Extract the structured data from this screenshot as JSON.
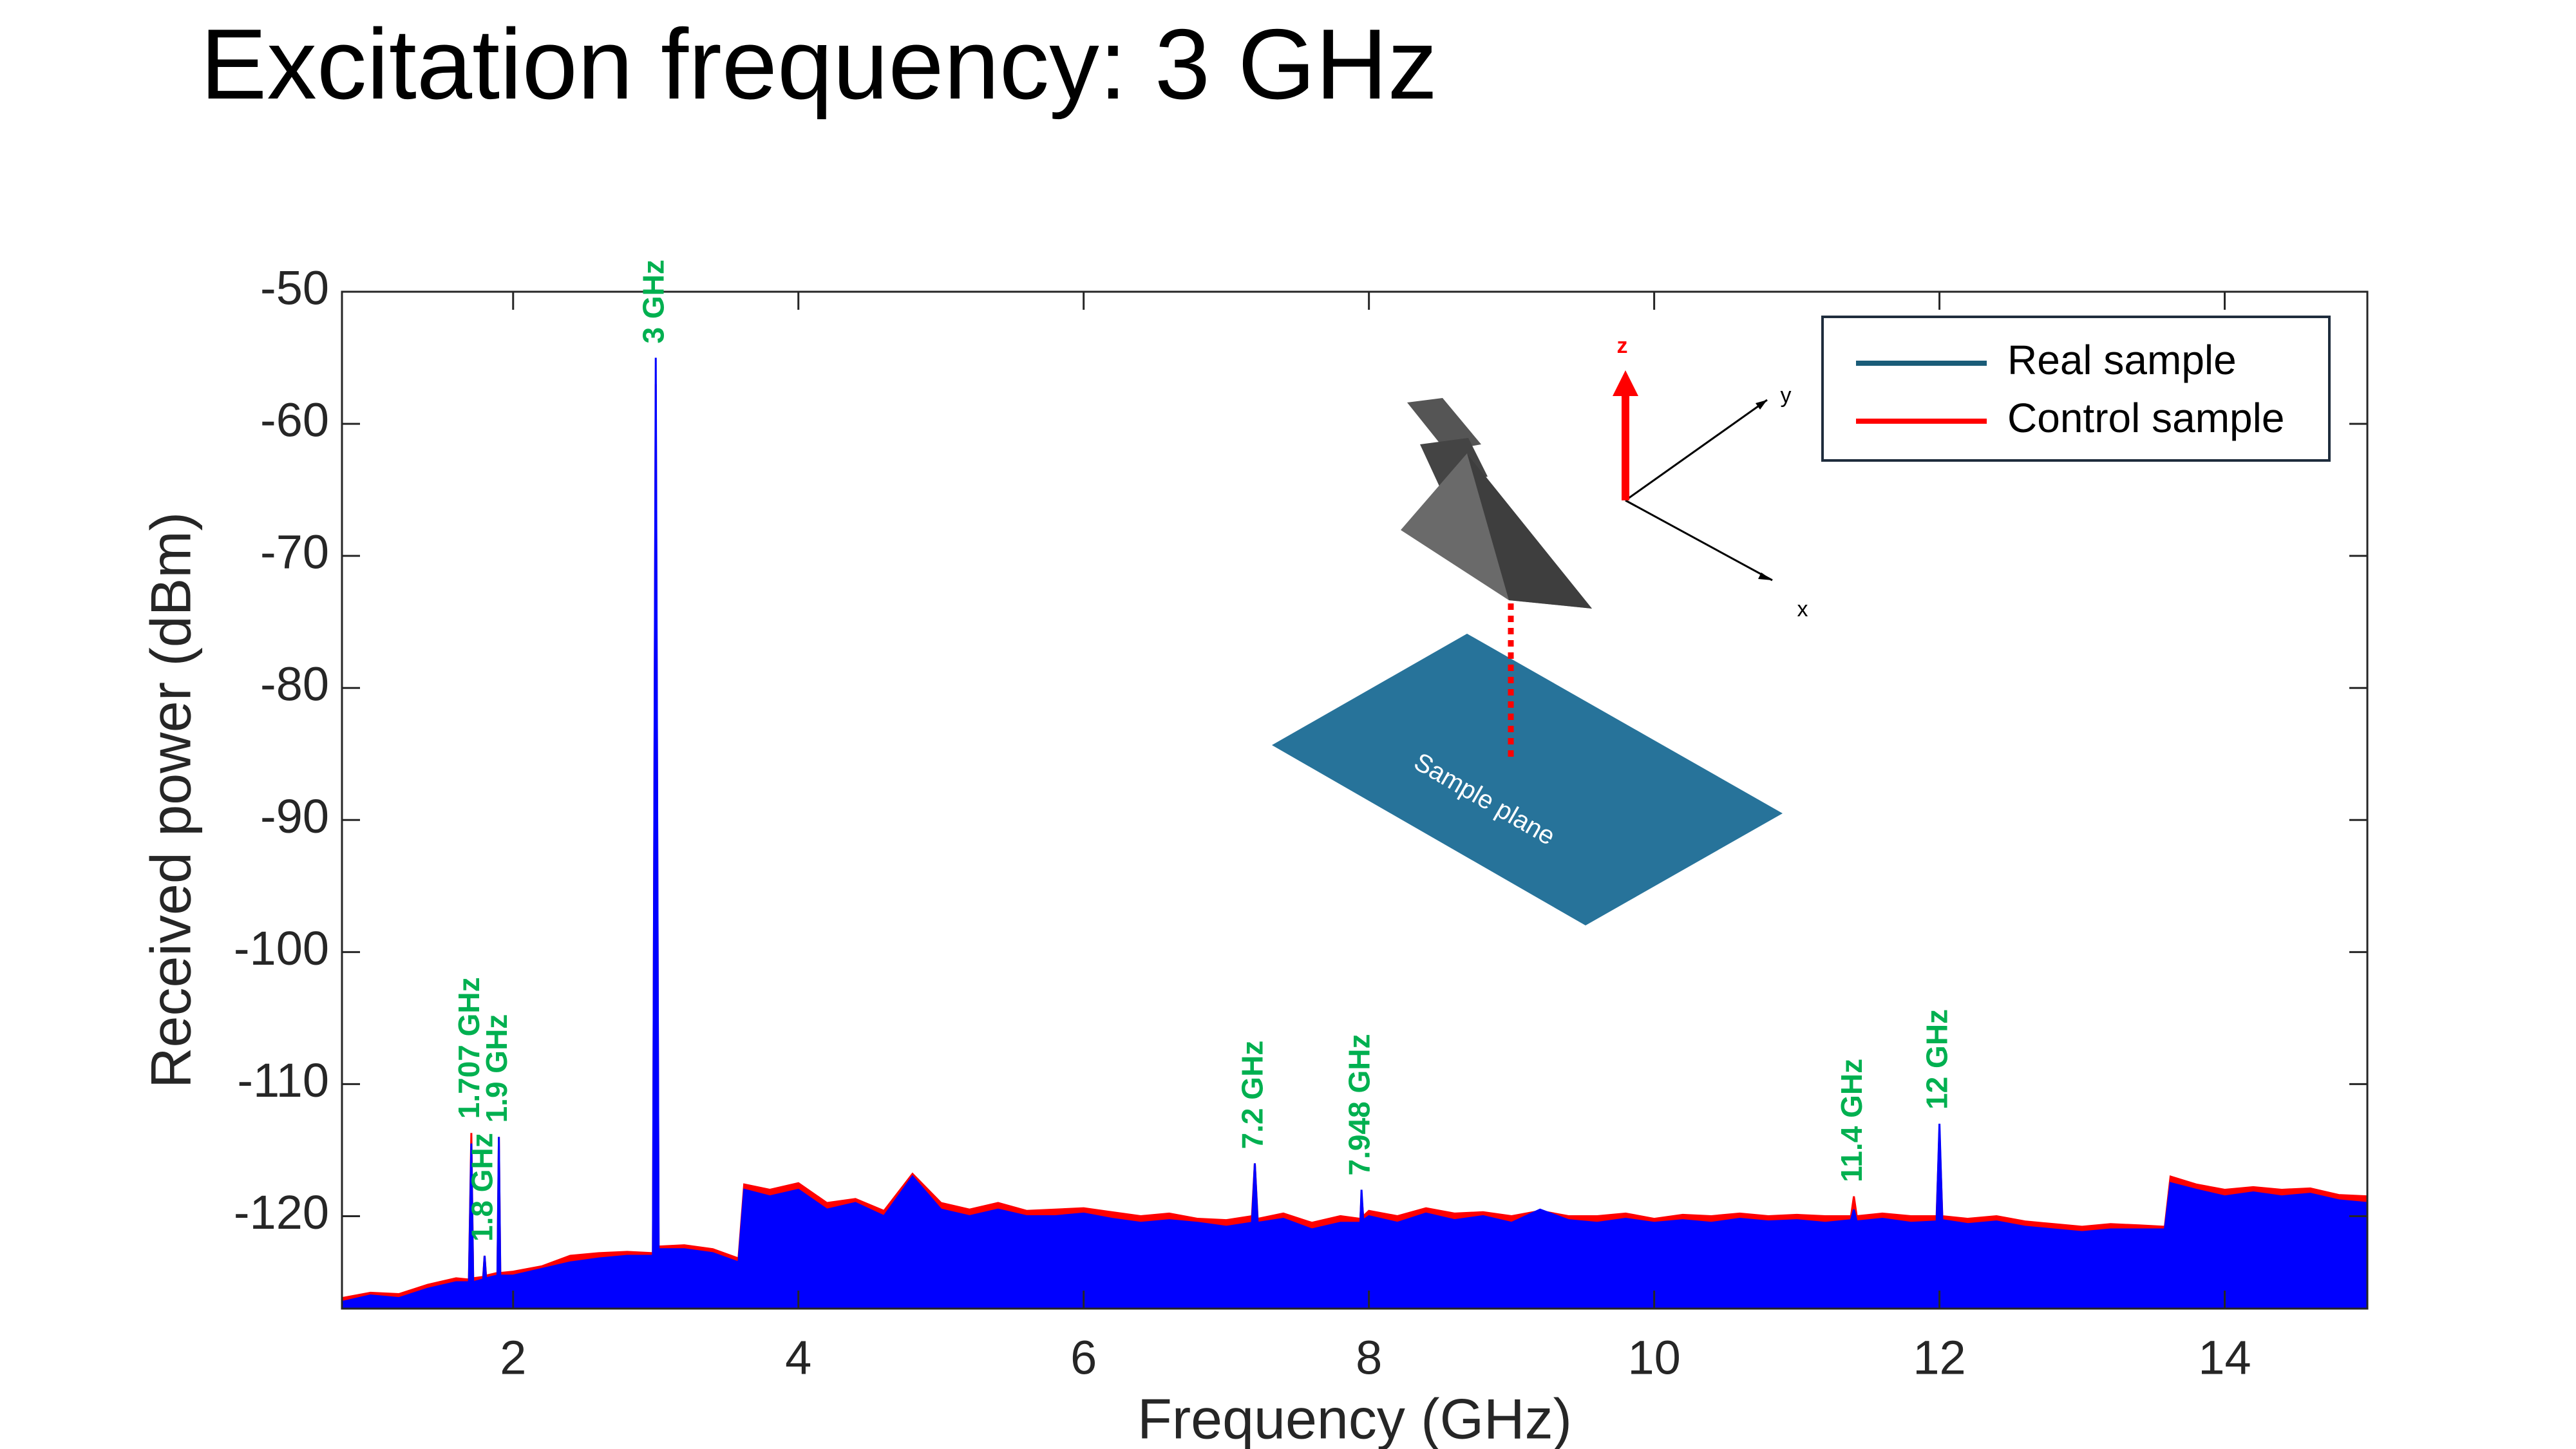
{
  "slide_title": "Excitation frequency: 3 GHz",
  "chart_data": {
    "type": "area",
    "xlabel": "Frequency (GHz)",
    "ylabel": "Received power (dBm)",
    "xlim": [
      0.8,
      15
    ],
    "ylim": [
      -127,
      -50
    ],
    "xticks": [
      2,
      4,
      6,
      8,
      10,
      12,
      14
    ],
    "yticks": [
      -50,
      -60,
      -70,
      -80,
      -90,
      -100,
      -110,
      -120
    ],
    "legend": "upper right",
    "x": [
      0.8,
      1.0,
      1.2,
      1.4,
      1.6,
      1.69,
      1.707,
      1.72,
      1.79,
      1.8,
      1.81,
      1.89,
      1.9,
      1.91,
      2.0,
      2.2,
      2.4,
      2.6,
      2.8,
      2.98,
      3.0,
      3.02,
      3.2,
      3.4,
      3.58,
      3.62,
      3.8,
      4.0,
      4.2,
      4.4,
      4.6,
      4.8,
      5.0,
      5.2,
      5.4,
      5.6,
      5.8,
      6.0,
      6.2,
      6.4,
      6.6,
      6.8,
      7.0,
      7.18,
      7.2,
      7.22,
      7.4,
      7.6,
      7.8,
      7.94,
      7.948,
      7.96,
      8.0,
      8.2,
      8.4,
      8.6,
      8.8,
      9.0,
      9.2,
      9.4,
      9.6,
      9.8,
      10.0,
      10.2,
      10.4,
      10.6,
      10.8,
      11.0,
      11.2,
      11.38,
      11.4,
      11.42,
      11.6,
      11.8,
      11.98,
      12.0,
      12.02,
      12.2,
      12.4,
      12.6,
      12.8,
      13.0,
      13.2,
      13.4,
      13.58,
      13.62,
      13.8,
      14.0,
      14.2,
      14.4,
      14.6,
      14.8,
      15.0
    ],
    "series": [
      {
        "name": "Control sample",
        "color": "#ff0000",
        "legend_color": "#ff0000",
        "values": [
          -126.2,
          -125.8,
          -125.9,
          -125.2,
          -124.7,
          -124.8,
          -113.7,
          -124.7,
          -124.6,
          -123,
          -124.5,
          -124.3,
          -114,
          -124.3,
          -124.2,
          -123.8,
          -123,
          -122.8,
          -122.7,
          -122.8,
          -57,
          -122.3,
          -122.2,
          -122.5,
          -123.2,
          -117.6,
          -118,
          -117.5,
          -119,
          -118.7,
          -119.6,
          -116.8,
          -119,
          -119.5,
          -119,
          -119.6,
          -119.5,
          -119.4,
          -119.7,
          -120,
          -119.8,
          -120.2,
          -120.3,
          -120,
          -116,
          -120.2,
          -119.8,
          -120.5,
          -120,
          -120.2,
          -118.5,
          -120,
          -119.6,
          -120,
          -119.4,
          -119.8,
          -119.7,
          -120,
          -119.6,
          -120,
          -120,
          -119.8,
          -120.2,
          -119.9,
          -120,
          -119.8,
          -120,
          -119.9,
          -120,
          -120,
          -118.5,
          -120,
          -119.8,
          -120,
          -120,
          -113.5,
          -120,
          -120.2,
          -120,
          -120.4,
          -120.6,
          -120.8,
          -120.6,
          -120.7,
          -120.8,
          -117,
          -117.6,
          -118,
          -117.8,
          -118,
          -117.9,
          -118.4,
          -118.5
        ]
      },
      {
        "name": "Real sample",
        "color": "#0000ff",
        "legend_color": "#1a5c78",
        "values": [
          -126.5,
          -126,
          -126.2,
          -125.5,
          -125,
          -125,
          -114.5,
          -125,
          -124.8,
          -123,
          -124.7,
          -124.5,
          -114,
          -124.5,
          -124.5,
          -124,
          -123.5,
          -123.2,
          -123,
          -123,
          -55,
          -122.5,
          -122.5,
          -122.8,
          -123.5,
          -118,
          -118.5,
          -118,
          -119.5,
          -119,
          -120,
          -117,
          -119.5,
          -120,
          -119.5,
          -120,
          -120,
          -119.8,
          -120.2,
          -120.5,
          -120.3,
          -120.5,
          -120.8,
          -120.5,
          -116,
          -120.5,
          -120.2,
          -121,
          -120.5,
          -120.5,
          -118,
          -120.3,
          -120,
          -120.5,
          -119.8,
          -120.3,
          -120,
          -120.5,
          -119.5,
          -120.3,
          -120.5,
          -120.2,
          -120.5,
          -120.3,
          -120.5,
          -120.2,
          -120.4,
          -120.3,
          -120.5,
          -120.3,
          -119.5,
          -120.4,
          -120.2,
          -120.5,
          -120.4,
          -113,
          -120.3,
          -120.6,
          -120.4,
          -120.8,
          -121,
          -121.2,
          -121,
          -121,
          -121,
          -117.5,
          -118,
          -118.5,
          -118.2,
          -118.5,
          -118.3,
          -118.8,
          -119
        ]
      }
    ],
    "legend_order": [
      1,
      0
    ],
    "annotation_color": "#00b050",
    "annotations": [
      {
        "text": "1.707 GHz",
        "x": 1.707
      },
      {
        "text": "1.8 GHz",
        "x": 1.8
      },
      {
        "text": "1.9 GHz",
        "x": 1.9
      },
      {
        "text": "3 GHz",
        "x": 3.0
      },
      {
        "text": "7.2 GHz",
        "x": 7.2
      },
      {
        "text": "7.948 GHz",
        "x": 7.948
      },
      {
        "text": "11.4 GHz",
        "x": 11.4
      },
      {
        "text": "12 GHz",
        "x": 12.0
      }
    ]
  },
  "inset": {
    "z": "z",
    "y": "y",
    "x": "x",
    "plane": "Sample plane"
  }
}
